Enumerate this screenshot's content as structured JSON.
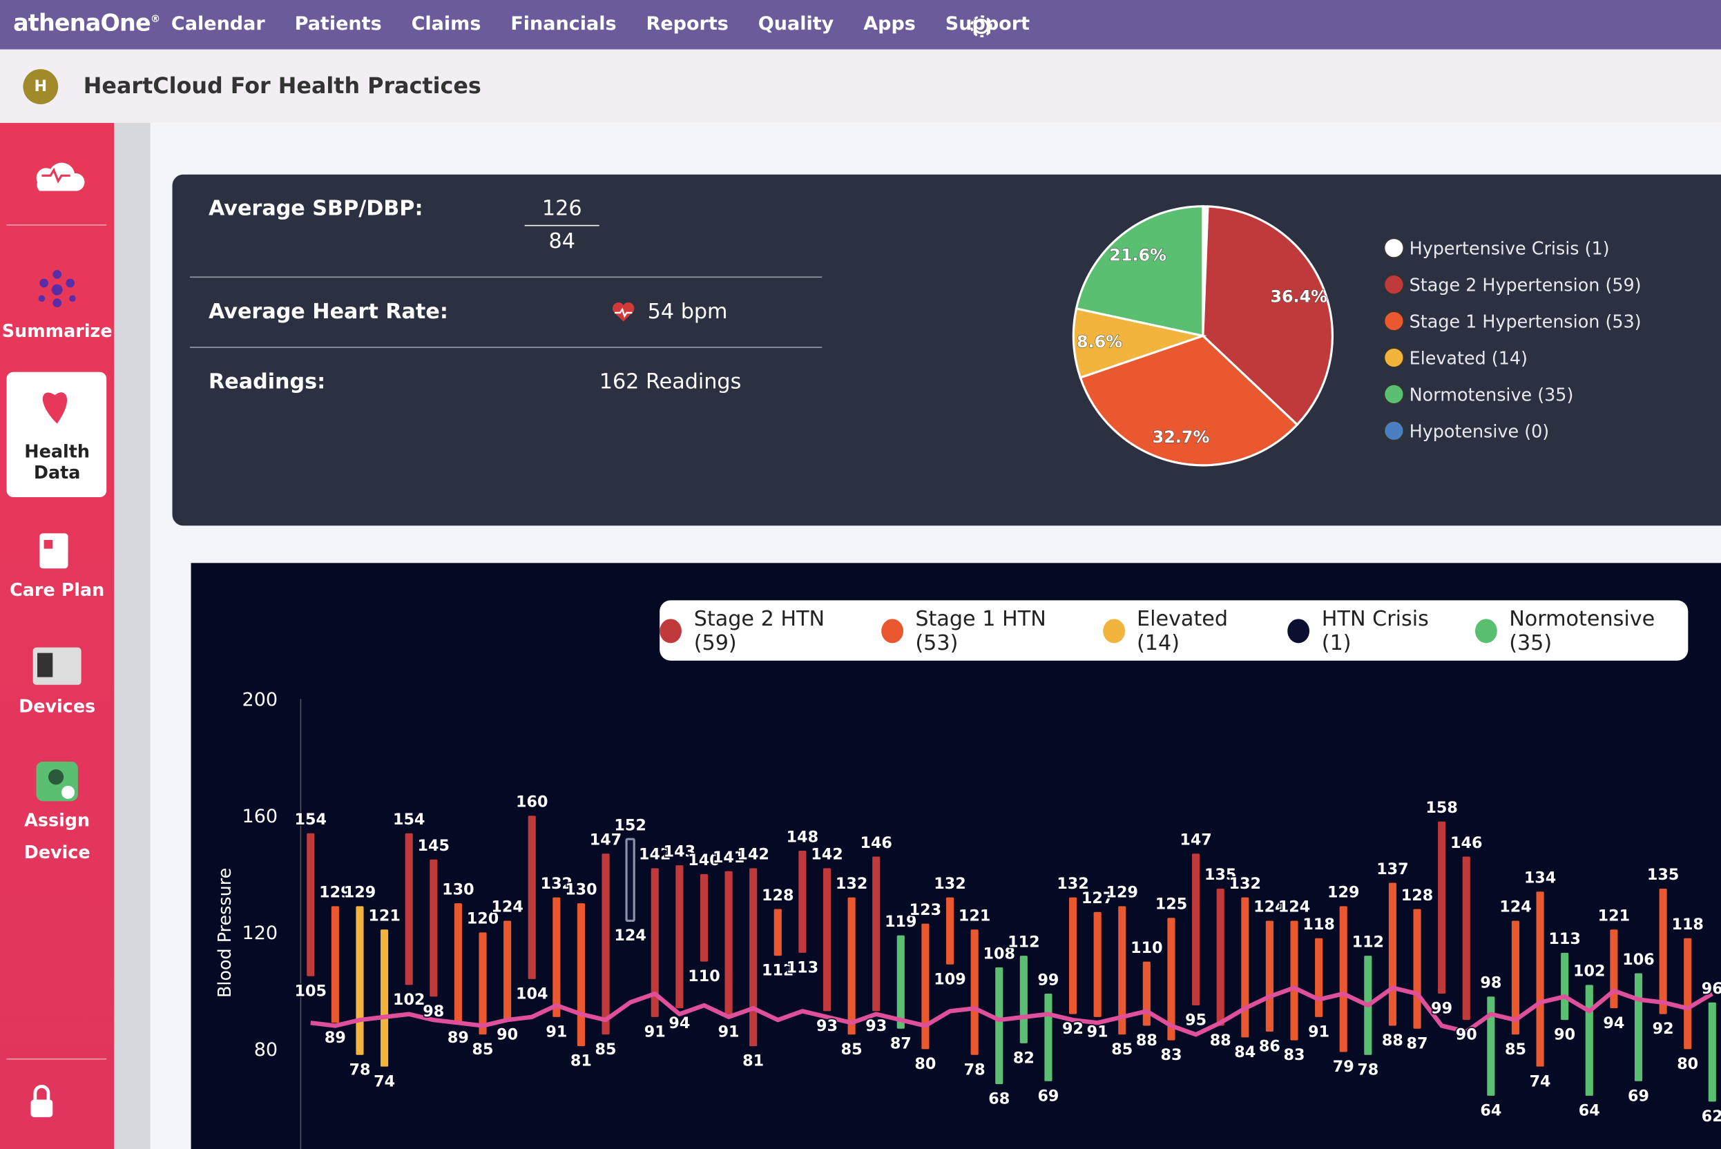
{
  "nav": {
    "brand": "athenaOne",
    "brand_mark": "®",
    "items": [
      "Calendar",
      "Patients",
      "Claims",
      "Financials",
      "Reports",
      "Quality",
      "Apps",
      "Support"
    ]
  },
  "header": {
    "avatar": "H",
    "title": "HeartCloud For Health Practices"
  },
  "sidebar": {
    "items": [
      "Summarize",
      "Health Data",
      "Care Plan",
      "Devices",
      "Assign Device"
    ]
  },
  "summary": {
    "bp_label": "Average SBP/DBP:",
    "sbp": 126,
    "dbp": 84,
    "hr_label": "Average Heart Rate:",
    "hr": "54 bpm",
    "readings_label": "Readings:",
    "readings": "162 Readings"
  },
  "chart_data": [
    {
      "type": "pie",
      "categories": [
        "Hypertensive Crisis (1)",
        "Stage 2 Hypertension (59)",
        "Stage 1 Hypertension (53)",
        "Elevated (14)",
        "Normotensive (35)",
        "Hypotensive (0)"
      ],
      "values": [
        0.6,
        36.4,
        32.7,
        8.6,
        21.6,
        0
      ],
      "value_labels": [
        null,
        "36.4%",
        "32.7%",
        "8.6%",
        "21.6%",
        null
      ],
      "colors": [
        "#ffffff",
        "#c0393b",
        "#e9582f",
        "#f2b43c",
        "#5bbf72",
        "#4a7fc1"
      ]
    },
    {
      "type": "range-bar",
      "y_label": "Blood Pressure",
      "ylim": [
        45,
        200
      ],
      "yticks": [
        80,
        120,
        160,
        200
      ],
      "grid": false,
      "series": [
        {
          "name": "Stage 2 HTN (59)",
          "color": "#c0393b"
        },
        {
          "name": "Stage 1 HTN (53)",
          "color": "#e9582f"
        },
        {
          "name": "Elevated (14)",
          "color": "#f2b43c"
        },
        {
          "name": "HTN Crisis (1)",
          "color": "#0b1030"
        },
        {
          "name": "Normotensive (35)",
          "color": "#5bbf72"
        }
      ],
      "sbp": [
        154,
        129,
        129,
        121,
        154,
        145,
        130,
        120,
        124,
        160,
        132,
        130,
        147,
        152,
        142,
        143,
        140,
        141,
        142,
        128,
        148,
        142,
        132,
        146,
        119,
        123,
        132,
        121,
        108,
        112,
        99,
        132,
        127,
        129,
        110,
        125,
        147,
        135,
        132,
        124,
        124,
        118,
        129,
        112,
        137,
        128,
        158,
        146,
        98,
        124,
        134,
        113,
        102,
        121,
        106,
        135,
        118,
        96
      ],
      "dbp": [
        105,
        89,
        78,
        74,
        102,
        98,
        89,
        85,
        90,
        104,
        91,
        81,
        85,
        124,
        91,
        94,
        110,
        91,
        81,
        112,
        113,
        93,
        85,
        93,
        87,
        80,
        109,
        78,
        68,
        82,
        69,
        92,
        91,
        85,
        88,
        83,
        95,
        88,
        84,
        86,
        83,
        91,
        79,
        78,
        88,
        87,
        99,
        90,
        64,
        85,
        74,
        90,
        64,
        94,
        69,
        92,
        80,
        62
      ],
      "status": [
        0,
        1,
        2,
        2,
        0,
        0,
        1,
        1,
        1,
        0,
        1,
        1,
        0,
        3,
        0,
        0,
        0,
        0,
        0,
        1,
        0,
        0,
        1,
        0,
        4,
        1,
        1,
        1,
        4,
        4,
        4,
        1,
        1,
        1,
        1,
        1,
        0,
        0,
        1,
        1,
        1,
        1,
        1,
        4,
        1,
        1,
        0,
        0,
        4,
        1,
        1,
        4,
        4,
        1,
        4,
        1,
        1,
        4
      ],
      "heart_rate": {
        "color": "#e0509a",
        "values": [
          89,
          88,
          90,
          91,
          92,
          90,
          89,
          88,
          90,
          91,
          95,
          92,
          90,
          96,
          99,
          92,
          95,
          91,
          94,
          90,
          93,
          91,
          89,
          92,
          90,
          88,
          93,
          94,
          90,
          91,
          92,
          90,
          89,
          91,
          93,
          88,
          85,
          89,
          94,
          98,
          101,
          97,
          99,
          95,
          101,
          99,
          88,
          86,
          92,
          90,
          96,
          98,
          93,
          100,
          97,
          96,
          94,
          99
        ]
      }
    }
  ]
}
